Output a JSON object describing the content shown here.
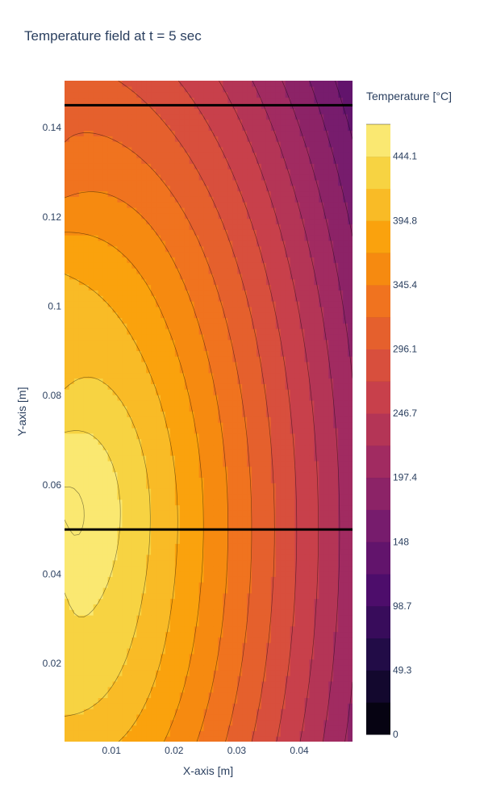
{
  "chart_data": {
    "type": "contour",
    "title": "Temperature field at t = 5 sec",
    "xlabel": "X-axis [m]",
    "ylabel": "Y-axis [m]",
    "xlim": [
      0.0025,
      0.0485
    ],
    "ylim": [
      0.0025,
      0.1505
    ],
    "x_ticks": [
      0.01,
      0.02,
      0.03,
      0.04
    ],
    "x_tick_labels": [
      "0.01",
      "0.02",
      "0.03",
      "0.04"
    ],
    "y_ticks": [
      0.02,
      0.04,
      0.06,
      0.08,
      0.1,
      0.12,
      0.14
    ],
    "y_tick_labels": [
      "0.02",
      "0.04",
      "0.06",
      "0.08",
      "0.1",
      "0.12",
      "0.14"
    ],
    "colorbar": {
      "title": "Temperature [°C]",
      "min": 0,
      "max": 483,
      "contour_step": 24.67,
      "tick_values": [
        0,
        49.3,
        98.7,
        148,
        197.4,
        246.7,
        296.1,
        345.4,
        394.8,
        444.1
      ],
      "tick_labels": [
        "0",
        "49.3",
        "98.7",
        "148",
        "197.4",
        "246.7",
        "296.1",
        "345.4",
        "394.8",
        "444.1"
      ],
      "colorscale": [
        "#000004",
        "#1b0c41",
        "#4a0c6b",
        "#781c6d",
        "#a52c60",
        "#cf4446",
        "#ed6925",
        "#fb9b06",
        "#f7d13d",
        "#fcffa4"
      ]
    },
    "horizontal_lines_y": [
      0.05,
      0.145
    ],
    "field_notes": "hottest near x≈0.003,y≈0.04 (~470°C); coldest at top-right corner (~130°C)"
  }
}
